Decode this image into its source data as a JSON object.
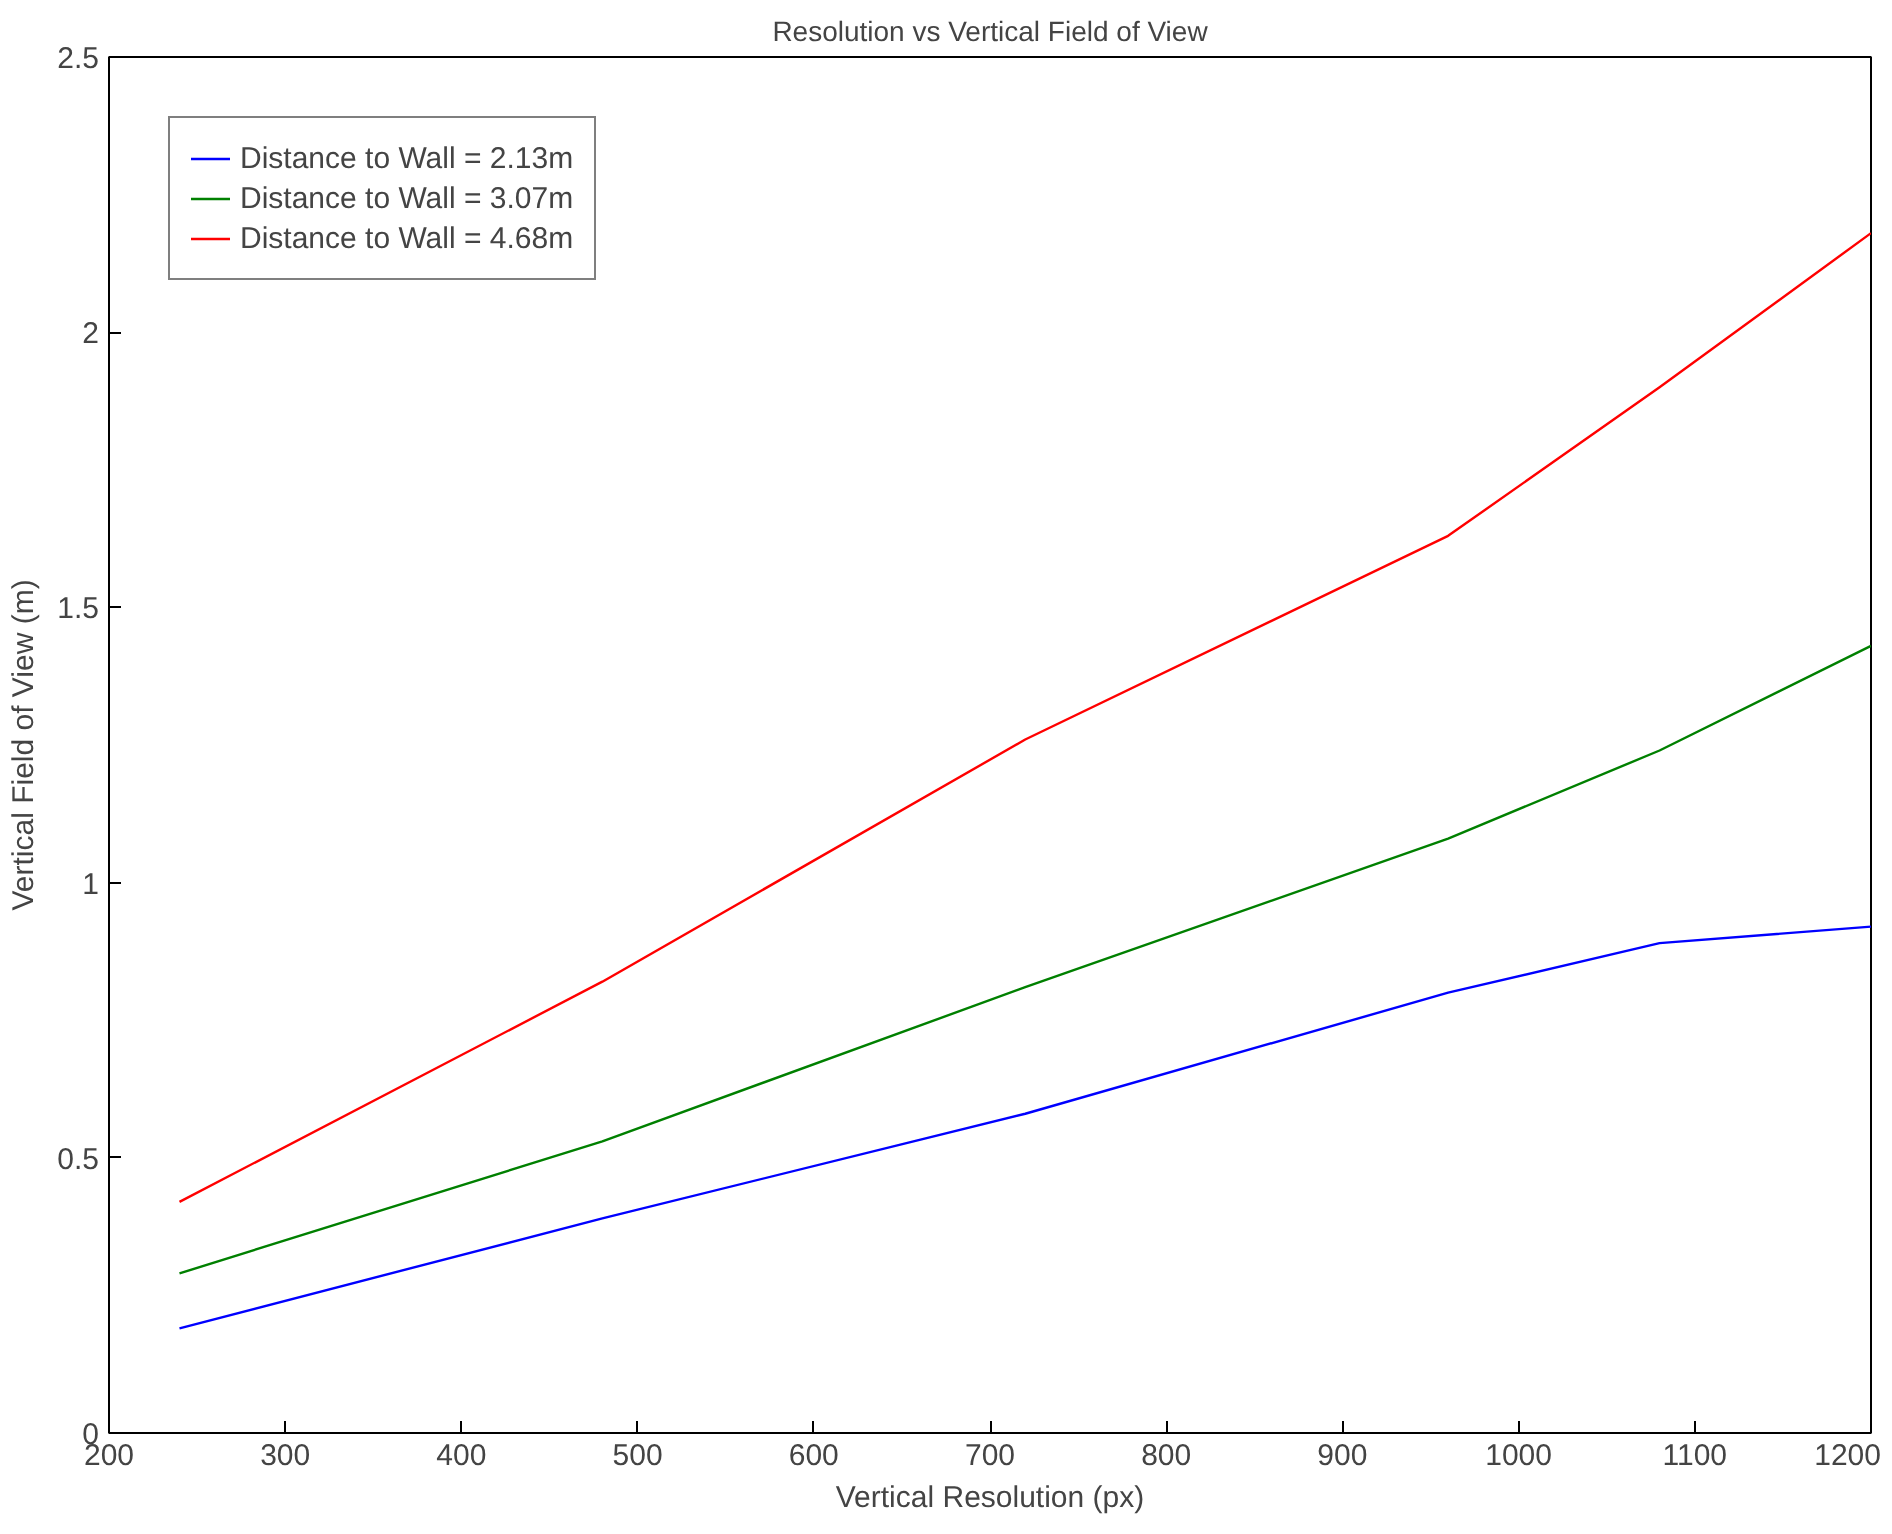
{
  "chart_data": {
    "type": "line",
    "title": "Resolution vs Vertical Field of View",
    "xlabel": "Vertical Resolution (px)",
    "ylabel": "Vertical Field of View (m)",
    "xlim": [
      200,
      1200
    ],
    "xticks": [
      200,
      300,
      400,
      500,
      600,
      700,
      800,
      900,
      1000,
      1100,
      1200
    ],
    "ylim": [
      0,
      2.5
    ],
    "yticks": [
      0,
      0.5,
      1,
      1.5,
      2,
      2.5
    ],
    "x": [
      240,
      480,
      720,
      960,
      1080,
      1200
    ],
    "series": [
      {
        "name": "Distance to Wall = 2.13m",
        "color": "#0000ff",
        "values": [
          0.19,
          0.39,
          0.58,
          0.8,
          0.89,
          0.92
        ]
      },
      {
        "name": "Distance to Wall = 3.07m",
        "color": "#008000",
        "values": [
          0.29,
          0.53,
          0.81,
          1.08,
          1.24,
          1.43
        ]
      },
      {
        "name": "Distance to Wall = 4.68m",
        "color": "#ff0000",
        "values": [
          0.42,
          0.82,
          1.26,
          1.63,
          1.9,
          2.18
        ]
      }
    ],
    "legend": "top left",
    "grid": false,
    "line_style": "solid"
  }
}
